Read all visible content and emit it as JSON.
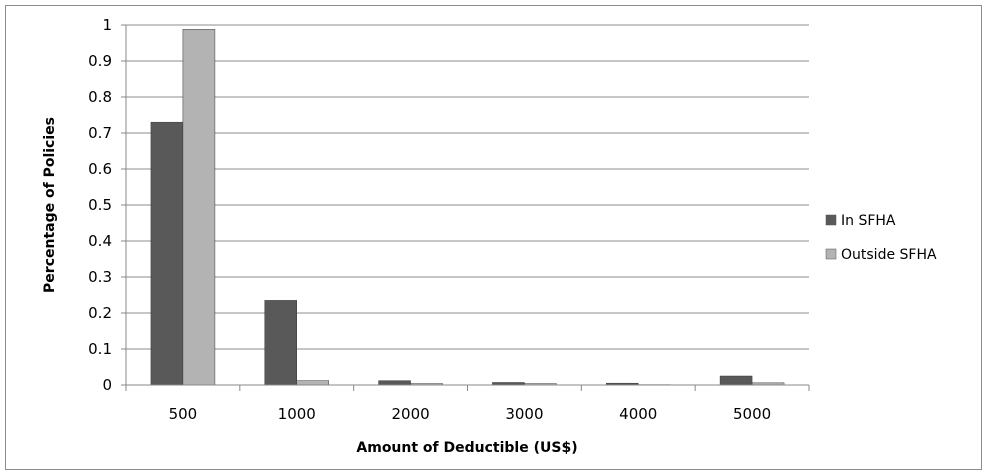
{
  "chart_data": {
    "type": "bar",
    "title": "",
    "xlabel": "Amount of Deductible (US$)",
    "ylabel": "Percentage of Policies",
    "categories": [
      "500",
      "1000",
      "2000",
      "3000",
      "4000",
      "5000"
    ],
    "ylim": [
      0,
      1
    ],
    "yticks": [
      "0",
      "0.1",
      "0.2",
      "0.3",
      "0.4",
      "0.5",
      "0.6",
      "0.7",
      "0.8",
      "0.9",
      "1"
    ],
    "grid": true,
    "legend_position": "right",
    "series": [
      {
        "name": "In SFHA",
        "color": "#595959",
        "values": [
          0.73,
          0.235,
          0.012,
          0.007,
          0.005,
          0.025
        ]
      },
      {
        "name": "Outside SFHA",
        "color": "#b3b3b3",
        "values": [
          0.988,
          0.012,
          0.004,
          0.004,
          0.001,
          0.006
        ]
      }
    ]
  }
}
